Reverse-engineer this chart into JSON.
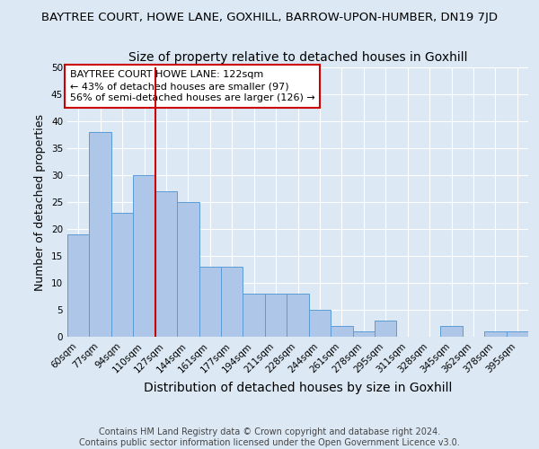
{
  "suptitle": "BAYTREE COURT, HOWE LANE, GOXHILL, BARROW-UPON-HUMBER, DN19 7JD",
  "title": "Size of property relative to detached houses in Goxhill",
  "xlabel": "Distribution of detached houses by size in Goxhill",
  "ylabel": "Number of detached properties",
  "footer_line1": "Contains HM Land Registry data © Crown copyright and database right 2024.",
  "footer_line2": "Contains public sector information licensed under the Open Government Licence v3.0.",
  "categories": [
    "60sqm",
    "77sqm",
    "94sqm",
    "110sqm",
    "127sqm",
    "144sqm",
    "161sqm",
    "177sqm",
    "194sqm",
    "211sqm",
    "228sqm",
    "244sqm",
    "261sqm",
    "278sqm",
    "295sqm",
    "311sqm",
    "328sqm",
    "345sqm",
    "362sqm",
    "378sqm",
    "395sqm"
  ],
  "values": [
    19,
    38,
    23,
    30,
    27,
    25,
    13,
    13,
    8,
    8,
    8,
    5,
    2,
    1,
    3,
    0,
    0,
    2,
    0,
    1,
    1
  ],
  "bar_color": "#aec6e8",
  "bar_edge_color": "#5b9bd5",
  "ylim": [
    0,
    50
  ],
  "yticks": [
    0,
    5,
    10,
    15,
    20,
    25,
    30,
    35,
    40,
    45,
    50
  ],
  "vline_x_index": 4,
  "vline_color": "#cc0000",
  "annotation_text": "BAYTREE COURT HOWE LANE: 122sqm\n← 43% of detached houses are smaller (97)\n56% of semi-detached houses are larger (126) →",
  "annotation_box_color": "#ffffff",
  "annotation_box_edge_color": "#cc0000",
  "background_color": "#dce9f5",
  "plot_background_color": "#dce9f5",
  "grid_color": "#ffffff",
  "suptitle_fontsize": 9.5,
  "title_fontsize": 10,
  "xlabel_fontsize": 10,
  "ylabel_fontsize": 9,
  "tick_fontsize": 7.5,
  "annotation_fontsize": 8,
  "footer_fontsize": 7
}
